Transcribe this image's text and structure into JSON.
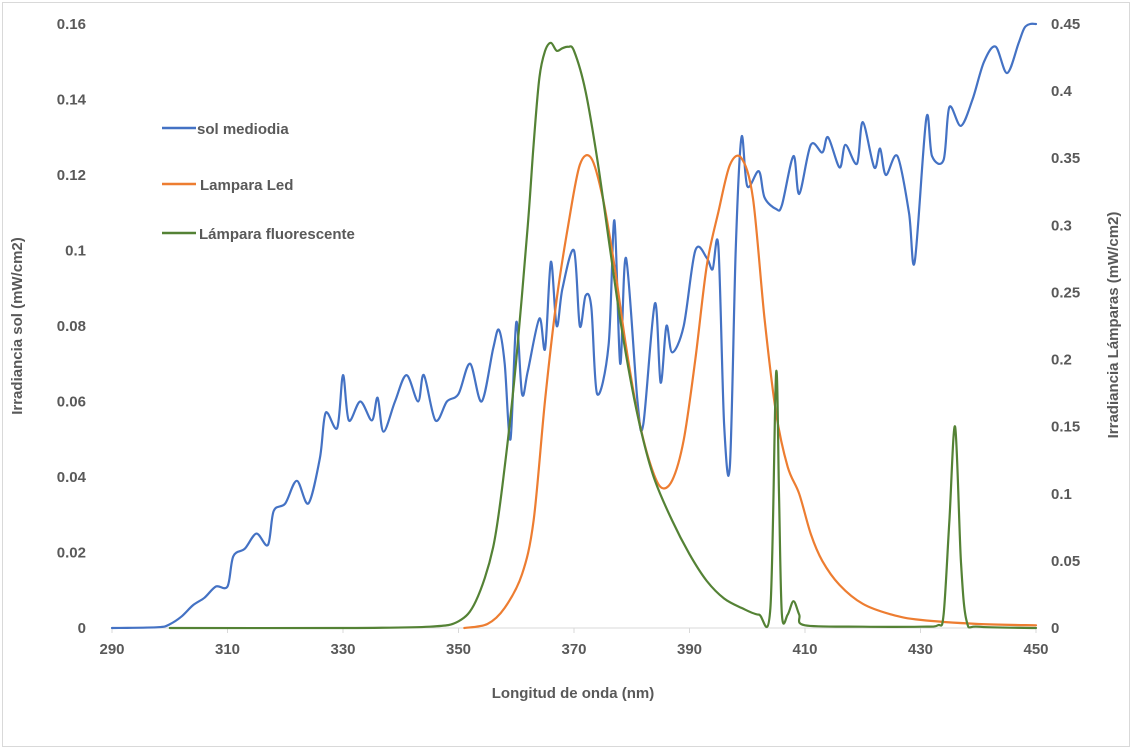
{
  "chart_data": {
    "type": "line",
    "title": "",
    "xlabel": "Longitud de onda (nm)",
    "ylabel_left": "Irradiancia sol (mW/cm2)",
    "ylabel_right": "Irradiancia Lámparas (mW/cm2)",
    "xlim": [
      290,
      450
    ],
    "ylim_left": [
      0,
      0.16
    ],
    "ylim_right": [
      0,
      0.45
    ],
    "x_ticks": [
      "290",
      "310",
      "330",
      "350",
      "370",
      "390",
      "410",
      "430",
      "450"
    ],
    "y_left_ticks": [
      "0",
      "0.02",
      "0.04",
      "0.06",
      "0.08",
      "0.1",
      "0.12",
      "0.14",
      "0.16"
    ],
    "y_right_ticks": [
      "0",
      "0.05",
      "0.1",
      "0.15",
      "0.2",
      "0.25",
      "0.3",
      "0.35",
      "0.4",
      "0.45"
    ],
    "grid": false,
    "legend": {
      "placement": "top-left"
    },
    "colors": {
      "sol": "#4472c4",
      "led": "#ed7d31",
      "fluor": "#548235"
    },
    "series": [
      {
        "name": "sol mediodia",
        "axis": "left",
        "x": [
          290,
          298,
          300,
          302,
          304,
          306,
          308,
          310,
          311,
          313,
          315,
          317,
          318,
          320,
          322,
          324,
          326,
          327,
          329,
          330,
          331,
          333,
          335,
          336,
          337,
          339,
          341,
          343,
          344,
          346,
          348,
          350,
          352,
          354,
          356,
          357,
          358,
          359,
          360,
          361,
          362,
          364,
          365,
          366,
          367,
          368,
          370,
          371,
          372,
          373,
          374,
          376,
          377,
          378,
          379,
          381,
          382,
          384,
          385,
          386,
          387,
          389,
          391,
          393,
          394,
          395,
          396,
          397,
          398,
          399,
          400,
          402,
          403,
          405,
          406,
          408,
          409,
          411,
          413,
          414,
          416,
          417,
          419,
          420,
          422,
          423,
          424,
          426,
          428,
          429,
          431,
          432,
          434,
          435,
          437,
          439,
          441,
          443,
          445,
          447,
          448,
          449,
          450
        ],
        "y": [
          0,
          0.0002,
          0.001,
          0.003,
          0.006,
          0.008,
          0.011,
          0.011,
          0.019,
          0.021,
          0.025,
          0.022,
          0.031,
          0.033,
          0.039,
          0.033,
          0.045,
          0.057,
          0.053,
          0.067,
          0.055,
          0.06,
          0.055,
          0.061,
          0.052,
          0.06,
          0.067,
          0.06,
          0.067,
          0.055,
          0.06,
          0.062,
          0.07,
          0.06,
          0.074,
          0.079,
          0.07,
          0.05,
          0.081,
          0.062,
          0.068,
          0.082,
          0.074,
          0.097,
          0.08,
          0.09,
          0.1,
          0.08,
          0.088,
          0.085,
          0.062,
          0.075,
          0.108,
          0.07,
          0.098,
          0.06,
          0.054,
          0.086,
          0.065,
          0.08,
          0.073,
          0.08,
          0.1,
          0.098,
          0.095,
          0.101,
          0.054,
          0.043,
          0.1,
          0.13,
          0.117,
          0.121,
          0.114,
          0.111,
          0.112,
          0.125,
          0.115,
          0.128,
          0.126,
          0.13,
          0.122,
          0.128,
          0.123,
          0.134,
          0.122,
          0.127,
          0.12,
          0.125,
          0.11,
          0.097,
          0.135,
          0.125,
          0.124,
          0.138,
          0.133,
          0.14,
          0.15,
          0.154,
          0.147,
          0.155,
          0.159,
          0.16,
          0.16
        ]
      },
      {
        "name": "Lampara Led",
        "axis": "right",
        "x": [
          351,
          355,
          358,
          361,
          363,
          365,
          367,
          369,
          371,
          373,
          375,
          377,
          379,
          381,
          383,
          385,
          387,
          389,
          391,
          393,
          395,
          397,
          399,
          401,
          403,
          405,
          407,
          409,
          411,
          413,
          416,
          420,
          425,
          430,
          440,
          450
        ],
        "y": [
          0,
          0.003,
          0.015,
          0.04,
          0.08,
          0.17,
          0.245,
          0.3,
          0.345,
          0.35,
          0.32,
          0.27,
          0.21,
          0.16,
          0.125,
          0.105,
          0.11,
          0.14,
          0.2,
          0.27,
          0.31,
          0.345,
          0.35,
          0.32,
          0.23,
          0.16,
          0.12,
          0.1,
          0.07,
          0.05,
          0.032,
          0.018,
          0.01,
          0.006,
          0.003,
          0.002
        ]
      },
      {
        "name": "Lámpara fluorescente",
        "axis": "right",
        "x": [
          300,
          330,
          345,
          350,
          353,
          356,
          358,
          360,
          362,
          363,
          364,
          365,
          366,
          367,
          368,
          369,
          370,
          372,
          374,
          376,
          378,
          380,
          382,
          384,
          387,
          390,
          393,
          396,
          399,
          402,
          404,
          405,
          405.5,
          406,
          407,
          408,
          409,
          410,
          420,
          430,
          433,
          434,
          435,
          436,
          437,
          438,
          440,
          450
        ],
        "y": [
          0,
          0,
          0.001,
          0.005,
          0.02,
          0.06,
          0.12,
          0.2,
          0.3,
          0.36,
          0.41,
          0.43,
          0.436,
          0.43,
          0.432,
          0.433,
          0.43,
          0.4,
          0.35,
          0.29,
          0.23,
          0.18,
          0.14,
          0.11,
          0.08,
          0.055,
          0.035,
          0.022,
          0.015,
          0.01,
          0.015,
          0.19,
          0.1,
          0.01,
          0.01,
          0.02,
          0.01,
          0.002,
          0.001,
          0.001,
          0.002,
          0.01,
          0.08,
          0.15,
          0.05,
          0.005,
          0.001,
          0
        ]
      }
    ]
  }
}
